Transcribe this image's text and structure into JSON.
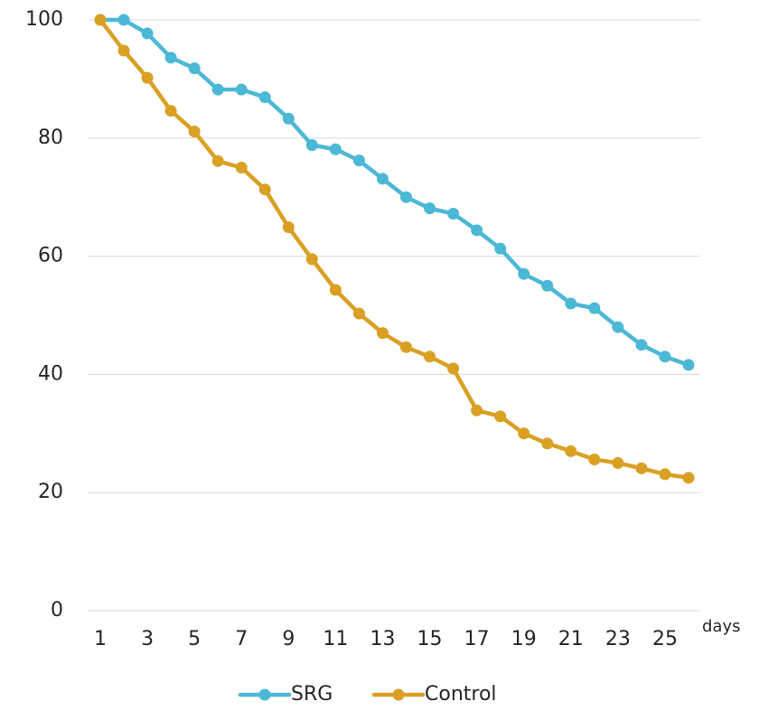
{
  "chart_data": {
    "type": "line",
    "title": "",
    "xlabel": "days",
    "ylabel": "",
    "ylim": [
      0,
      100
    ],
    "yticks": [
      0,
      20,
      40,
      60,
      80,
      100
    ],
    "xtick_labels": [
      "1",
      "3",
      "5",
      "7",
      "9",
      "11",
      "13",
      "15",
      "17",
      "19",
      "21",
      "23",
      "25"
    ],
    "x": [
      1,
      2,
      3,
      4,
      5,
      6,
      7,
      8,
      9,
      10,
      11,
      12,
      13,
      14,
      15,
      16,
      17,
      18,
      19,
      20,
      21,
      22,
      23,
      24,
      25,
      26
    ],
    "grid": true,
    "legend_position": "bottom",
    "series": [
      {
        "name": "SRG",
        "color": "#4BB8D5",
        "values": [
          100,
          100,
          97.7,
          93.6,
          91.8,
          88.2,
          88.2,
          86.9,
          83.3,
          78.8,
          78.1,
          76.2,
          73.1,
          70.0,
          68.1,
          67.2,
          64.4,
          61.3,
          57.0,
          55.0,
          52.0,
          51.2,
          48.0,
          45.0,
          43.0,
          41.6
        ]
      },
      {
        "name": "Control",
        "color": "#D9A023",
        "values": [
          100,
          94.8,
          90.2,
          84.6,
          81.1,
          76.1,
          75.0,
          71.3,
          64.9,
          59.5,
          54.3,
          50.3,
          47.0,
          44.6,
          43.0,
          41.0,
          33.9,
          32.9,
          30.0,
          28.3,
          27.0,
          25.6,
          25.0,
          24.1,
          23.1,
          22.5
        ]
      }
    ]
  }
}
